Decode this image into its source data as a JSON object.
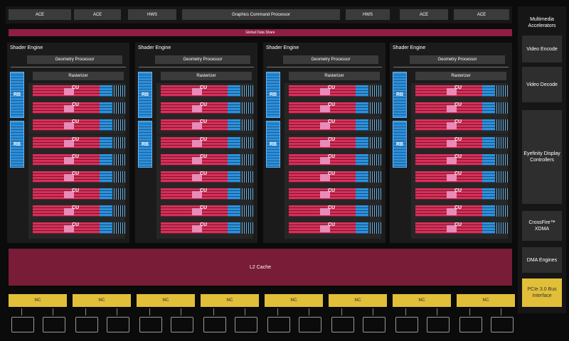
{
  "top_bar": [
    "ACE",
    "ACE",
    "HWS",
    "Graphics Command Processor",
    "HWS",
    "ACE",
    "ACE"
  ],
  "global_data_share": "Global Data Share",
  "shader_engines": [
    {
      "title": "Shader Engine",
      "geometry": "Geometry Processor",
      "rasterizer": "Rasterizer",
      "rb": [
        "RB",
        "RB"
      ],
      "cu": [
        "CU",
        "CU",
        "CU",
        "CU",
        "CU",
        "CU",
        "CU",
        "CU",
        "CU"
      ]
    },
    {
      "title": "Shader Engine",
      "geometry": "Geometry Processor",
      "rasterizer": "Rasterizer",
      "rb": [
        "RB",
        "RB"
      ],
      "cu": [
        "CU",
        "CU",
        "CU",
        "CU",
        "CU",
        "CU",
        "CU",
        "CU",
        "CU"
      ]
    },
    {
      "title": "Shader Engine",
      "geometry": "Geometry Processor",
      "rasterizer": "Rasterizer",
      "rb": [
        "RB",
        "RB"
      ],
      "cu": [
        "CU",
        "CU",
        "CU",
        "CU",
        "CU",
        "CU",
        "CU",
        "CU",
        "CU"
      ]
    },
    {
      "title": "Shader Engine",
      "geometry": "Geometry Processor",
      "rasterizer": "Rasterizer",
      "rb": [
        "RB",
        "RB"
      ],
      "cu": [
        "CU",
        "CU",
        "CU",
        "CU",
        "CU",
        "CU",
        "CU",
        "CU",
        "CU"
      ]
    }
  ],
  "l2_cache": "L2 Cache",
  "memory_controllers": [
    "MC",
    "MC",
    "MC",
    "MC",
    "MC",
    "MC",
    "MC",
    "MC"
  ],
  "side_title": "Multimedia Accelerators",
  "side_blocks": [
    "Video Encode",
    "Video Decode",
    "Eyefinity Display Controllers",
    "CrossFire™ XDMA",
    "DMA Engines",
    "PCIe 3.0 Bus Interface"
  ]
}
